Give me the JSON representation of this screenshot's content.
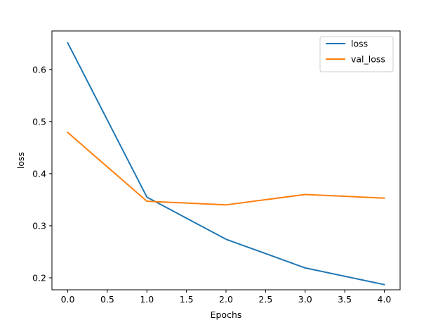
{
  "chart_data": {
    "type": "line",
    "title": "",
    "xlabel": "Epochs",
    "ylabel": "loss",
    "x": [
      0,
      1,
      2,
      3,
      4
    ],
    "xlim": [
      -0.2,
      4.2
    ],
    "ylim": [
      0.177,
      0.674
    ],
    "xticks": [
      0.0,
      0.5,
      1.0,
      1.5,
      2.0,
      2.5,
      3.0,
      3.5,
      4.0
    ],
    "xtick_labels": [
      "0.0",
      "0.5",
      "1.0",
      "1.5",
      "2.0",
      "2.5",
      "3.0",
      "3.5",
      "4.0"
    ],
    "yticks": [
      0.2,
      0.3,
      0.4,
      0.5,
      0.6
    ],
    "ytick_labels": [
      "0.2",
      "0.3",
      "0.4",
      "0.5",
      "0.6"
    ],
    "grid": false,
    "legend_position": "top-right",
    "series": [
      {
        "name": "loss",
        "color": "#1f77b4",
        "values": [
          0.651,
          0.355,
          0.274,
          0.219,
          0.187
        ]
      },
      {
        "name": "val_loss",
        "color": "#ff7f0e",
        "values": [
          0.479,
          0.347,
          0.34,
          0.36,
          0.353
        ]
      }
    ]
  }
}
